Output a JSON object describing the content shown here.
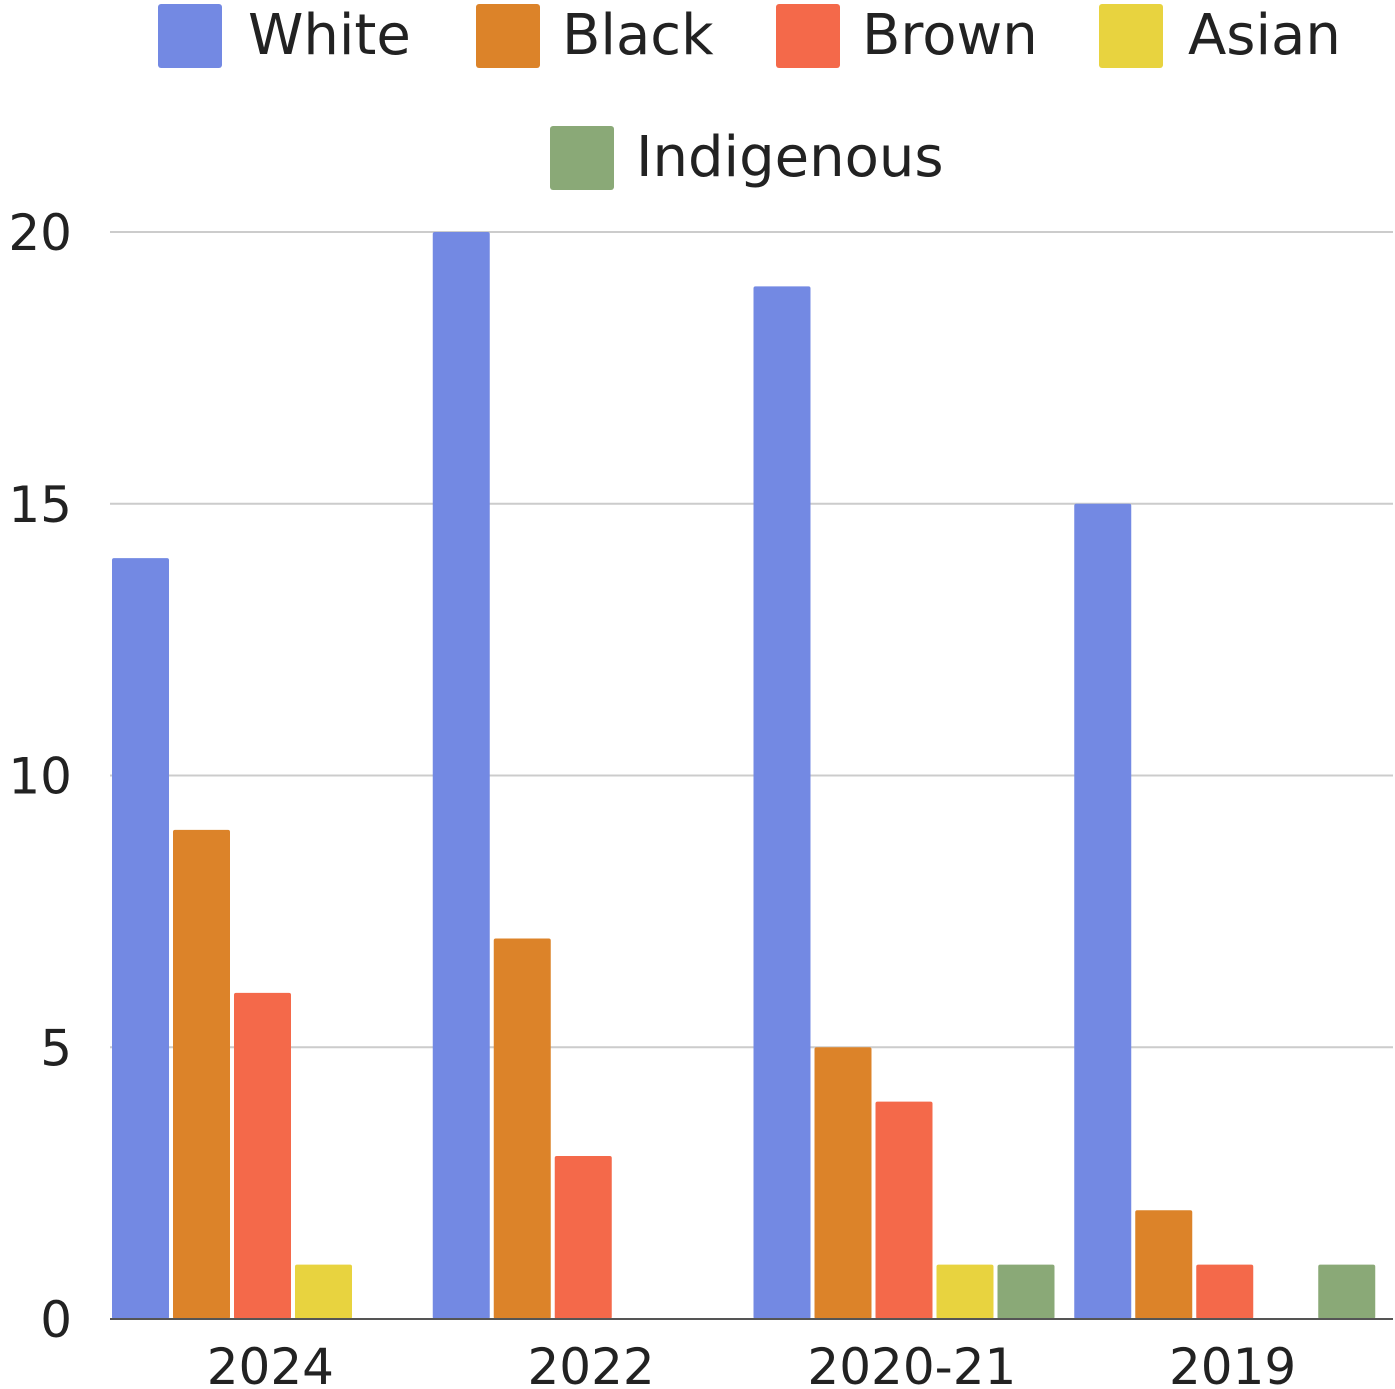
{
  "chart_data": {
    "type": "bar",
    "title": "",
    "xlabel": "",
    "ylabel": "",
    "categories": [
      "2024",
      "2022",
      "2020-21",
      "2019"
    ],
    "series": [
      {
        "name": "White",
        "color": "#7389e3",
        "values": [
          14,
          20,
          19,
          15
        ]
      },
      {
        "name": "Black",
        "color": "#dc8329",
        "values": [
          9,
          7,
          5,
          2
        ]
      },
      {
        "name": "Brown",
        "color": "#f4694a",
        "values": [
          6,
          3,
          4,
          1
        ]
      },
      {
        "name": "Asian",
        "color": "#e8d33f",
        "values": [
          1,
          0,
          1,
          0
        ]
      },
      {
        "name": "Indigenous",
        "color": "#8aa977",
        "values": [
          0,
          0,
          1,
          1
        ]
      }
    ],
    "ylim": [
      0,
      20
    ],
    "yticks": [
      "0",
      "5",
      "10",
      "15",
      "20"
    ],
    "grid": true,
    "legend": "top-center"
  }
}
